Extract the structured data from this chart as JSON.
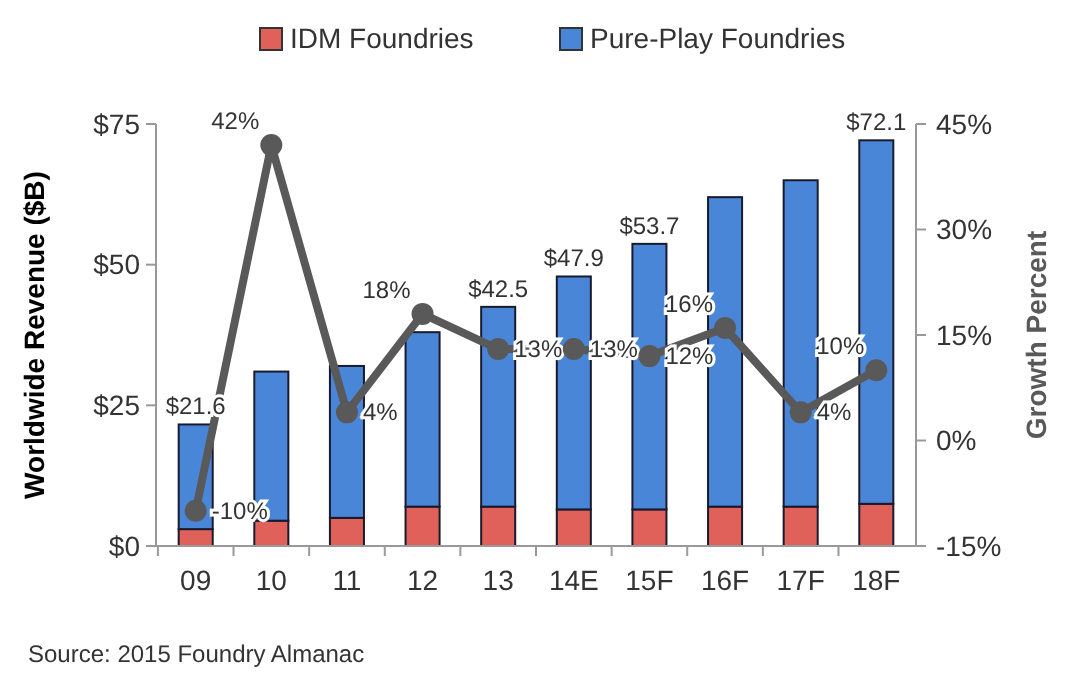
{
  "chart_data": {
    "type": "bar",
    "stacked": true,
    "categories": [
      "09",
      "10",
      "11",
      "12",
      "13",
      "14E",
      "15F",
      "16F",
      "17F",
      "18F"
    ],
    "series": [
      {
        "name": "IDM Foundries",
        "color": "#e0605a",
        "values": [
          3,
          4.5,
          5,
          7,
          7,
          6.5,
          6.5,
          7,
          7,
          7.5
        ]
      },
      {
        "name": "Pure-Play Foundries",
        "color": "#4a86d8",
        "values": [
          18.6,
          26.5,
          27,
          31,
          35.5,
          41.4,
          47.2,
          55,
          58,
          64.6
        ]
      },
      {
        "name": "Growth Percent",
        "type": "line",
        "axis": "y2",
        "color": "#595959",
        "marker": "circle",
        "values": [
          -10,
          42,
          4,
          18,
          13,
          13,
          12,
          16,
          4,
          10
        ],
        "value_labels": [
          "-10%",
          "42%",
          "4%",
          "18%",
          "13%",
          "13%",
          "12%",
          "16%",
          "4%",
          "10%"
        ]
      }
    ],
    "totals": [
      "$21.6",
      null,
      null,
      null,
      "$42.5",
      "$47.9",
      "$53.7",
      null,
      null,
      "$72.1"
    ],
    "ylim": [
      0,
      75
    ],
    "yticks": [
      {
        "value": 0,
        "label": "$0"
      },
      {
        "value": 25,
        "label": "$25"
      },
      {
        "value": 50,
        "label": "$50"
      },
      {
        "value": 75,
        "label": "$75"
      }
    ],
    "y2lim": [
      -15,
      45
    ],
    "y2ticks": [
      {
        "value": -15,
        "label": "-15%"
      },
      {
        "value": 0,
        "label": "0%"
      },
      {
        "value": 15,
        "label": "15%"
      },
      {
        "value": 30,
        "label": "30%"
      },
      {
        "value": 45,
        "label": "45%"
      }
    ],
    "ylabel": "Worldwide Revenue ($B)",
    "legend": "top",
    "annotations": [
      "Source: 2015 Foundry Almanac"
    ]
  }
}
